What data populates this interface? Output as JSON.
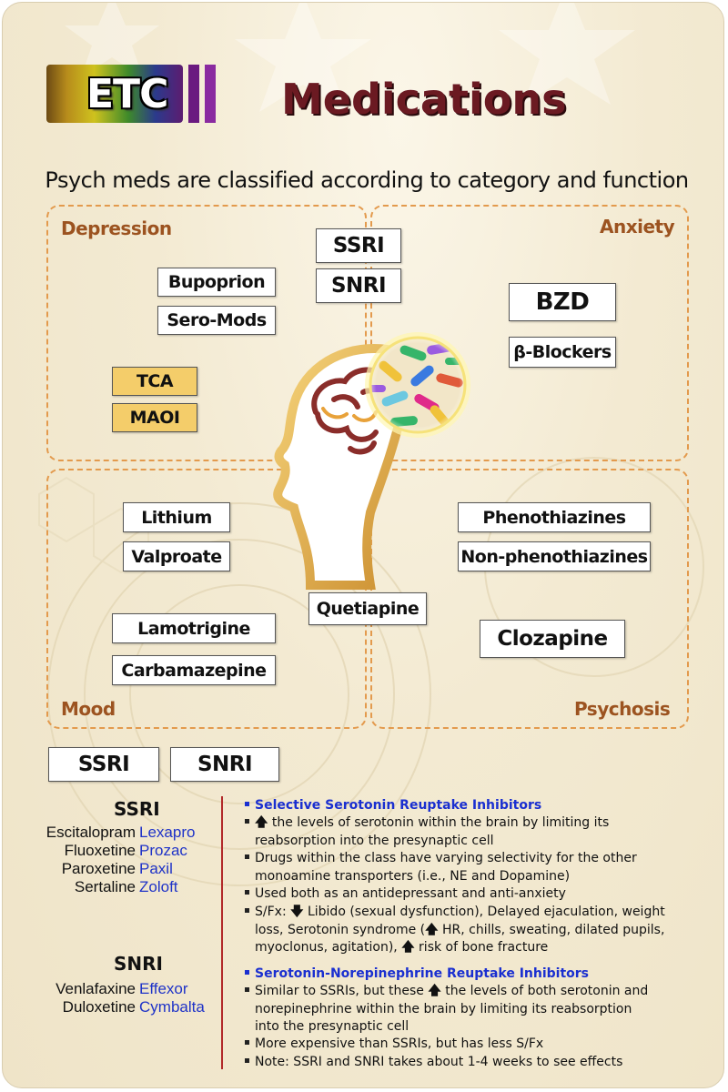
{
  "header": {
    "logo_text": "ETC",
    "title": "Medications",
    "subtitle": "Psych meds are classified according to category and function"
  },
  "quadrants": {
    "depression": "Depression",
    "anxiety": "Anxiety",
    "mood": "Mood",
    "psychosis": "Psychosis"
  },
  "drugs": {
    "ssri_top": "SSRI",
    "snri_top": "SNRI",
    "bupoprion": "Bupoprion",
    "sero_mods": "Sero-Mods",
    "tca": "TCA",
    "maoi": "MAOI",
    "bzd": "BZD",
    "beta_blockers": "β-Blockers",
    "lithium": "Lithium",
    "valproate": "Valproate",
    "lamotrigine": "Lamotrigine",
    "carbamazepine": "Carbamazepine",
    "quetiapine": "Quetiapine",
    "phenothiazines": "Phenothiazines",
    "non_phenothiazines": "Non-phenothiazines",
    "clozapine": "Clozapine"
  },
  "class_boxes": {
    "ssri": "SSRI",
    "snri": "SNRI"
  },
  "ssri_list": {
    "heading": "SSRI",
    "items": [
      {
        "generic": "Escitalopram",
        "brand": "Lexapro"
      },
      {
        "generic": "Fluoxetine",
        "brand": "Prozac"
      },
      {
        "generic": "Paroxetine",
        "brand": "Paxil"
      },
      {
        "generic": "Sertaline",
        "brand": "Zoloft"
      }
    ]
  },
  "snri_list": {
    "heading": "SNRI",
    "items": [
      {
        "generic": "Venlafaxine",
        "brand": "Effexor"
      },
      {
        "generic": "Duloxetine",
        "brand": "Cymbalta"
      }
    ]
  },
  "ssri_notes": {
    "heading": "Selective Serotonin Reuptake Inhibitors",
    "b1a": " the levels of serotonin within the brain by limiting its",
    "b1b": "reabsorption into the presynaptic cell",
    "b2a": "Drugs within the class have varying selectivity for the other",
    "b2b": "monoamine transporters (i.e., NE and Dopamine)",
    "b3": "Used both as an antidepressant and anti-anxiety",
    "b4a_pre": "S/Fx: ",
    "b4a_post": " Libido (sexual dysfunction), Delayed ejaculation, weight",
    "b4b_pre": "loss, Serotonin syndrome (",
    "b4b_post": " HR, chills, sweating, dilated pupils,",
    "b4c_pre": "myoclonus, agitation), ",
    "b4c_post": " risk of bone fracture"
  },
  "snri_notes": {
    "heading": "Serotonin-Norepinephrine Reuptake Inhibitors",
    "b1a_pre": "Similar to SSRIs, but these ",
    "b1a_post": " the levels of both serotonin and",
    "b1b": "norepinephrine within the brain by limiting its reabsorption",
    "b1c": "into the presynaptic cell",
    "b2": "More expensive than SSRIs, but has less S/Fx",
    "b3": "Note: SSRI and SNRI takes about 1-4 weeks to see effects"
  },
  "colors": {
    "title": "#6b1a22",
    "quadrant_border": "#e39a4d",
    "quadrant_label": "#9c5320",
    "brand_blue": "#1f33c8",
    "divider": "#b22a2a",
    "highlight_box": "#f4cd6a"
  }
}
